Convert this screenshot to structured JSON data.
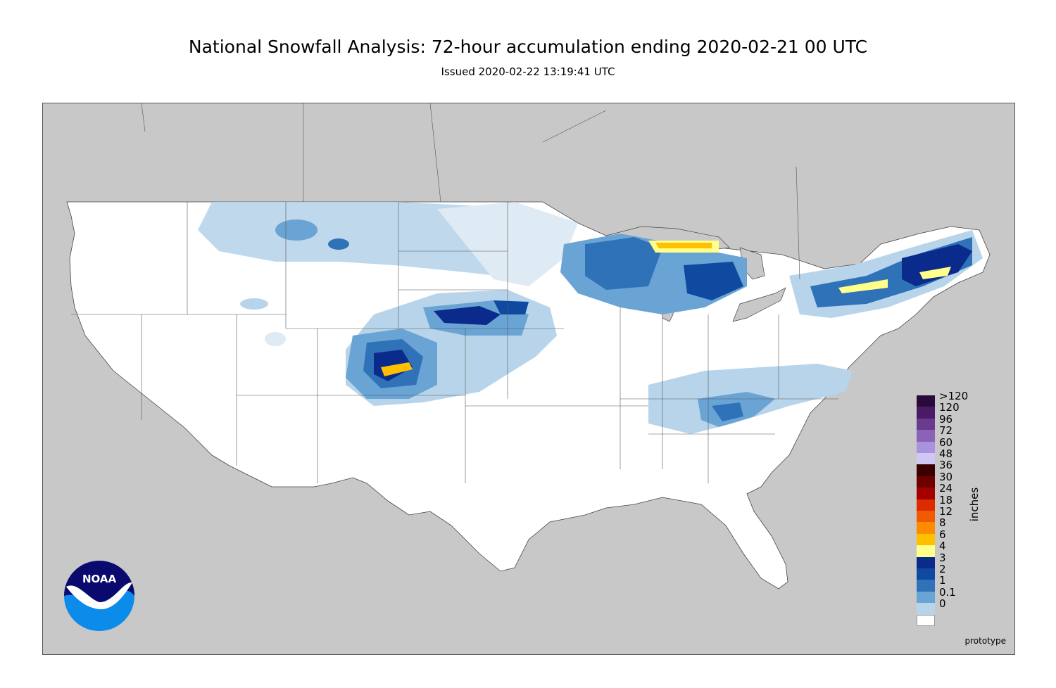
{
  "title": "National Snowfall Analysis: 72-hour accumulation ending 2020-02-21 00 UTC",
  "subtitle": "Issued 2020-02-22 13:19:41 UTC",
  "map_label": "prototype",
  "units": "inches",
  "logo_text": "NOAA",
  "legend": [
    {
      "label": ">120",
      "color": "#2a0a3a"
    },
    {
      "label": "120",
      "color": "#4a1a66"
    },
    {
      "label": "96",
      "color": "#6a3a8e"
    },
    {
      "label": "72",
      "color": "#8a63b8"
    },
    {
      "label": "60",
      "color": "#a893dc"
    },
    {
      "label": "48",
      "color": "#cfc8f5"
    },
    {
      "label": "36",
      "color": "#3a0000"
    },
    {
      "label": "30",
      "color": "#6e0000"
    },
    {
      "label": "24",
      "color": "#a50000"
    },
    {
      "label": "18",
      "color": "#dd2a00"
    },
    {
      "label": "12",
      "color": "#f05a00"
    },
    {
      "label": "8",
      "color": "#ff8c00"
    },
    {
      "label": "6",
      "color": "#ffc000"
    },
    {
      "label": "4",
      "color": "#ffff8a"
    },
    {
      "label": "3",
      "color": "#0a2a8c"
    },
    {
      "label": "2",
      "color": "#0f4aa0"
    },
    {
      "label": "1",
      "color": "#2f72b8"
    },
    {
      "label": "0.1",
      "color": "#6aa4d4"
    },
    {
      "label": "0",
      "color": "#b8d4ea"
    }
  ],
  "colors": {
    "background": "#c8c8c8",
    "land": "#ffffff",
    "snow_trace": "#deeaf4",
    "snow_light": "#b8d4ea",
    "snow_1": "#6aa4d4",
    "snow_2": "#2f72b8",
    "snow_4": "#0f4aa0",
    "snow_6": "#0a2a8c",
    "snow_8": "#ffff8a",
    "snow_12": "#ffc000"
  }
}
